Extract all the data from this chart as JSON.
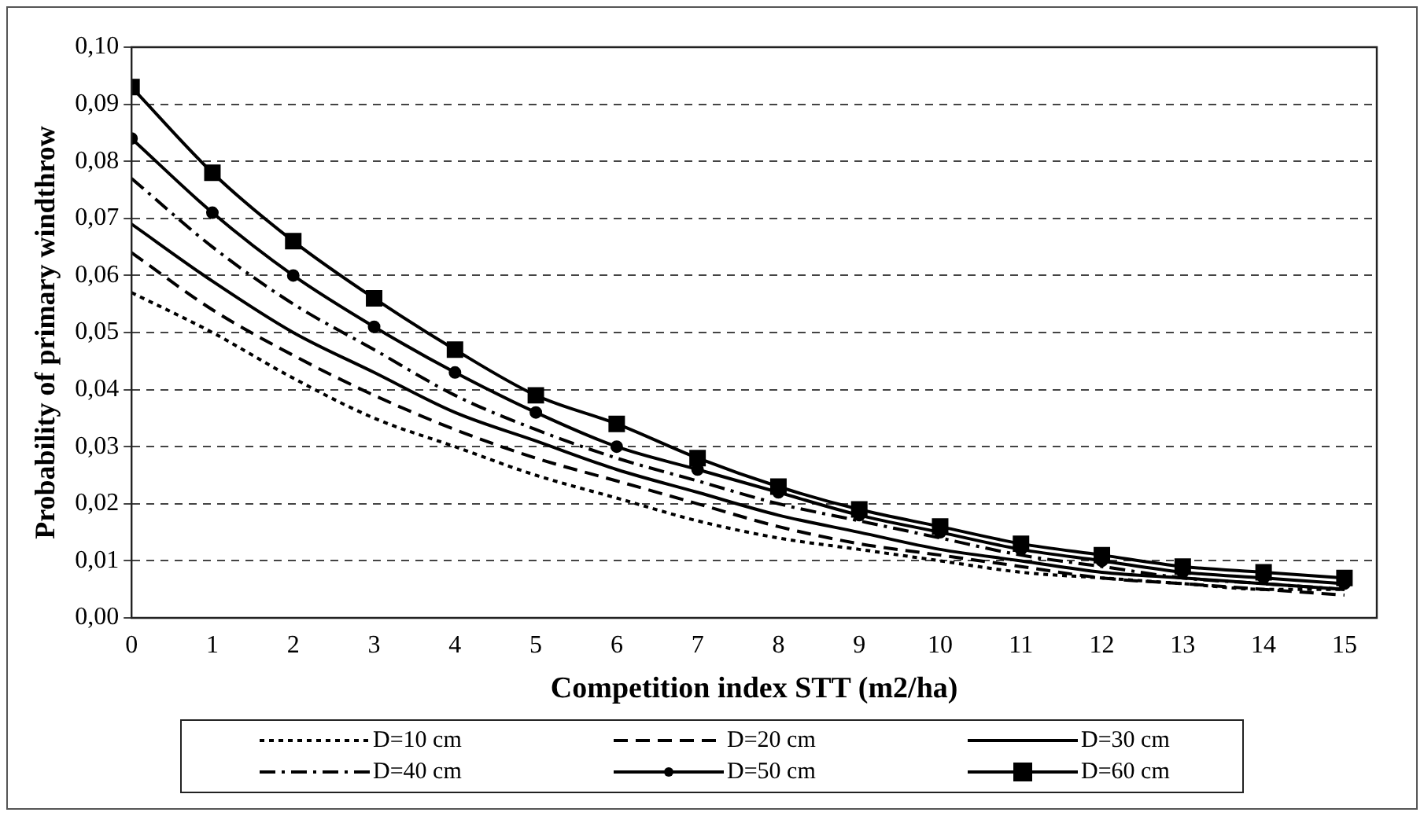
{
  "chart_data": {
    "type": "line",
    "xlabel": "Competition index STT (m2/ha)",
    "ylabel": "Probability of primary windthrow",
    "x": [
      0,
      1,
      2,
      3,
      4,
      5,
      6,
      7,
      8,
      9,
      10,
      11,
      12,
      13,
      14,
      15
    ],
    "xlim": [
      0,
      15.4
    ],
    "xticks": [
      0,
      1,
      2,
      3,
      4,
      5,
      6,
      7,
      8,
      9,
      10,
      11,
      12,
      13,
      14,
      15
    ],
    "ylim": [
      0,
      0.1
    ],
    "yticks": [
      {
        "value": 0,
        "label": "0,00"
      },
      {
        "value": 0.01,
        "label": "0,01"
      },
      {
        "value": 0.02,
        "label": "0,02"
      },
      {
        "value": 0.03,
        "label": "0,03"
      },
      {
        "value": 0.04,
        "label": "0,04"
      },
      {
        "value": 0.05,
        "label": "0,05"
      },
      {
        "value": 0.06,
        "label": "0,06"
      },
      {
        "value": 0.07,
        "label": "0,07"
      },
      {
        "value": 0.08,
        "label": "0,08"
      },
      {
        "value": 0.09,
        "label": "0,09"
      },
      {
        "value": 0.1,
        "label": "0,10"
      }
    ],
    "grid": "y",
    "legend": "bottom",
    "series": [
      {
        "name": "D=10 cm",
        "color": "#000000",
        "line_style": "dotted",
        "marker": "none",
        "values": [
          0.057,
          0.05,
          0.042,
          0.035,
          0.03,
          0.025,
          0.021,
          0.017,
          0.014,
          0.012,
          0.01,
          0.008,
          0.007,
          0.006,
          0.005,
          0.005
        ]
      },
      {
        "name": "D=20 cm",
        "color": "#000000",
        "line_style": "dashed",
        "marker": "none",
        "values": [
          0.064,
          0.054,
          0.046,
          0.039,
          0.033,
          0.028,
          0.024,
          0.02,
          0.016,
          0.013,
          0.011,
          0.009,
          0.007,
          0.006,
          0.005,
          0.004
        ]
      },
      {
        "name": "D=30 cm",
        "color": "#000000",
        "line_style": "solid",
        "marker": "none",
        "values": [
          0.069,
          0.059,
          0.05,
          0.043,
          0.036,
          0.031,
          0.026,
          0.022,
          0.018,
          0.015,
          0.012,
          0.01,
          0.008,
          0.007,
          0.006,
          0.005
        ]
      },
      {
        "name": "D=40 cm",
        "color": "#000000",
        "line_style": "dashdot",
        "marker": "none",
        "values": [
          0.077,
          0.065,
          0.055,
          0.047,
          0.039,
          0.033,
          0.028,
          0.024,
          0.02,
          0.017,
          0.014,
          0.011,
          0.009,
          0.007,
          0.006,
          0.005
        ]
      },
      {
        "name": "D=50 cm",
        "color": "#000000",
        "line_style": "solid",
        "marker": "circle",
        "values": [
          0.084,
          0.071,
          0.06,
          0.051,
          0.043,
          0.036,
          0.03,
          0.026,
          0.022,
          0.018,
          0.015,
          0.012,
          0.01,
          0.008,
          0.007,
          0.006
        ]
      },
      {
        "name": "D=60 cm",
        "color": "#000000",
        "line_style": "solid",
        "marker": "square",
        "values": [
          0.093,
          0.078,
          0.066,
          0.056,
          0.047,
          0.039,
          0.034,
          0.028,
          0.023,
          0.019,
          0.016,
          0.013,
          0.011,
          0.009,
          0.008,
          0.007
        ]
      }
    ]
  }
}
